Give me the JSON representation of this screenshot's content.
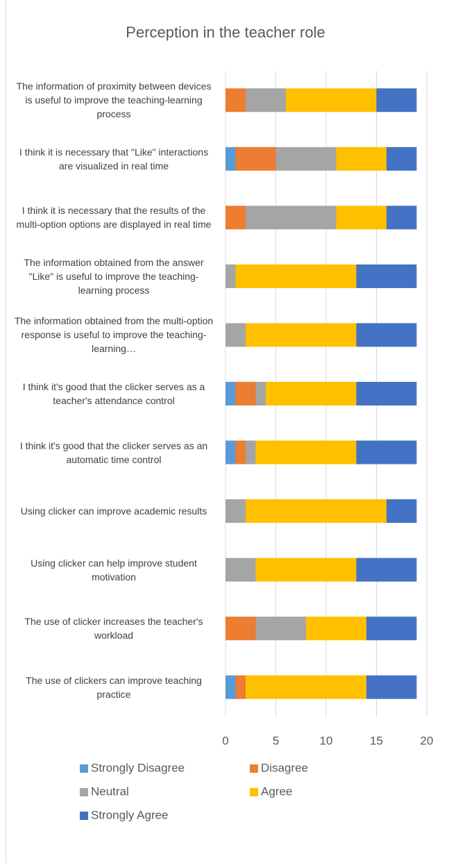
{
  "chart_data": {
    "type": "stacked_barh",
    "title": "Perception in the teacher role",
    "categories": [
      "The information of proximity between devices is useful to improve the teaching-learning process",
      "I think it is necessary that \"Like\" interactions are visualized in real time",
      "I think it is necessary that the results of the multi-option options are displayed in real time",
      "The information obtained from the answer \"Like\" is useful to improve the teaching-learning process",
      "The information obtained from the multi-option response is useful to improve the teaching-learning…",
      "I think it's good that the clicker serves as a teacher's attendance control",
      "I think it's good that the clicker serves as an automatic time control",
      "Using clicker can improve academic results",
      "Using clicker can help improve student motivation",
      "The use of clicker increases the teacher's workload",
      "The use of clickers can improve teaching practice"
    ],
    "series": [
      {
        "name": "Strongly Disagree",
        "color": "#5b9bd5",
        "values": [
          0,
          1,
          0,
          0,
          0,
          1,
          1,
          0,
          0,
          0,
          1
        ]
      },
      {
        "name": "Disagree",
        "color": "#ed7d31",
        "values": [
          2,
          4,
          2,
          0,
          0,
          2,
          1,
          0,
          0,
          3,
          1
        ]
      },
      {
        "name": "Neutral",
        "color": "#a5a5a5",
        "values": [
          4,
          6,
          9,
          1,
          2,
          1,
          1,
          2,
          3,
          5,
          0
        ]
      },
      {
        "name": "Agree",
        "color": "#ffc000",
        "values": [
          9,
          5,
          5,
          12,
          11,
          9,
          10,
          14,
          10,
          6,
          12
        ]
      },
      {
        "name": "Strongly Agree",
        "color": "#4472c4",
        "values": [
          4,
          3,
          3,
          6,
          6,
          6,
          6,
          3,
          6,
          5,
          5
        ]
      }
    ],
    "xlim": [
      0,
      20
    ],
    "xticks": [
      0,
      5,
      10,
      15,
      20
    ],
    "grid": true,
    "legend": "bottom"
  }
}
